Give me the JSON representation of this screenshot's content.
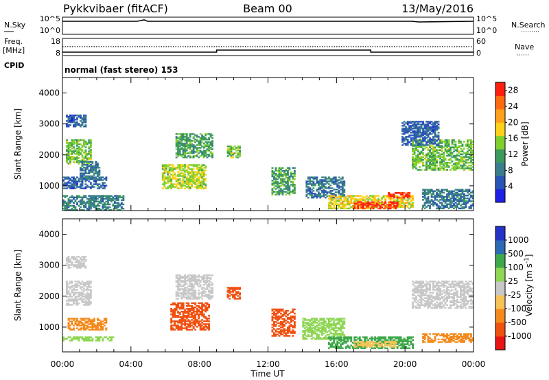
{
  "header": {
    "radar": "Pykkvibaer (fitACF)",
    "beam": "Beam 00",
    "date": "13/May/2016"
  },
  "top_panels": {
    "nsky_label": "N.Sky",
    "nsearch_label": "N.Search",
    "nsky_ticks": [
      "10^5",
      "10^0"
    ],
    "nsearch_ticks": [
      "10^5",
      "10^0"
    ],
    "freq_label": "Freq.",
    "freq_unit": "[MHz]",
    "freq_ticks": [
      "18",
      "8"
    ],
    "nave_label": "Nave",
    "nave_ticks": [
      "60",
      "0"
    ],
    "cpid_label": "CPID",
    "cpid_text": "normal (fast stereo) 153",
    "freq_steps": [
      {
        "t": 0.0,
        "v": 10.0
      },
      {
        "t": 9.0,
        "v": 11.2
      },
      {
        "t": 18.0,
        "v": 10.0
      },
      {
        "t": 24.0,
        "v": 10.0
      }
    ]
  },
  "colors": {
    "power": [
      "#1f1fe6",
      "#2a55b8",
      "#3a7d8c",
      "#3b9a5c",
      "#7fcf2e",
      "#ffd21a",
      "#ffa11a",
      "#ff6a10",
      "#ff1f10"
    ],
    "velocity": [
      "#e81414",
      "#f05010",
      "#f58a1c",
      "#f7c256",
      "#c8c8c8",
      "#8ed654",
      "#3ea84a",
      "#2c6ab4",
      "#2432c8"
    ]
  },
  "chart_data": [
    {
      "type": "heatmap",
      "name": "power",
      "x_ticks": [
        "00:00",
        "04:00",
        "08:00",
        "12:00",
        "16:00",
        "20:00",
        "00:00"
      ],
      "xlabel": "Time UT",
      "ylabel": "Slant Range [km]",
      "yticks": [
        1000,
        2000,
        3000,
        4000
      ],
      "ylim": [
        200,
        4500
      ],
      "xlim": [
        0,
        24
      ],
      "colorbar_label": "Power [dB]",
      "colorbar_ticks": [
        4,
        8,
        12,
        16,
        20,
        24,
        28
      ],
      "clim": [
        0,
        30
      ],
      "regions": [
        {
          "t0": 0.2,
          "t1": 1.7,
          "r0": 1700,
          "r1": 2500,
          "v": 14
        },
        {
          "t0": 0.2,
          "t1": 1.4,
          "r0": 2900,
          "r1": 3300,
          "v": 6
        },
        {
          "t0": 0.0,
          "t1": 3.6,
          "r0": 200,
          "r1": 700,
          "v": 9
        },
        {
          "t0": 0.0,
          "t1": 2.6,
          "r0": 900,
          "r1": 1300,
          "v": 6
        },
        {
          "t0": 1.0,
          "t1": 2.2,
          "r0": 1200,
          "r1": 1800,
          "v": 8
        },
        {
          "t0": 5.8,
          "t1": 8.4,
          "r0": 900,
          "r1": 1700,
          "v": 16
        },
        {
          "t0": 6.6,
          "t1": 8.8,
          "r0": 1900,
          "r1": 2700,
          "v": 12
        },
        {
          "t0": 9.6,
          "t1": 10.4,
          "r0": 1900,
          "r1": 2300,
          "v": 14
        },
        {
          "t0": 12.2,
          "t1": 13.6,
          "r0": 700,
          "r1": 1600,
          "v": 12
        },
        {
          "t0": 14.2,
          "t1": 16.5,
          "r0": 600,
          "r1": 1300,
          "v": 8
        },
        {
          "t0": 15.5,
          "t1": 20.5,
          "r0": 250,
          "r1": 700,
          "v": 18
        },
        {
          "t0": 17.0,
          "t1": 19.6,
          "r0": 250,
          "r1": 500,
          "v": 28
        },
        {
          "t0": 19.0,
          "t1": 20.3,
          "r0": 600,
          "r1": 800,
          "v": 28
        },
        {
          "t0": 20.4,
          "t1": 24.0,
          "r0": 1500,
          "r1": 2500,
          "v": 14
        },
        {
          "t0": 19.8,
          "t1": 22.0,
          "r0": 2300,
          "r1": 3100,
          "v": 6
        },
        {
          "t0": 21.0,
          "t1": 24.0,
          "r0": 250,
          "r1": 900,
          "v": 8
        }
      ]
    },
    {
      "type": "heatmap",
      "name": "velocity",
      "x_ticks": [
        "00:00",
        "04:00",
        "08:00",
        "12:00",
        "16:00",
        "20:00",
        "00:00"
      ],
      "xlabel": "Time UT",
      "ylabel": "Slant Range [km]",
      "yticks": [
        1000,
        2000,
        3000,
        4000
      ],
      "ylim": [
        200,
        4500
      ],
      "xlim": [
        0,
        24
      ],
      "colorbar_label": "Velocity [m s^-1]",
      "colorbar_ticks": [
        "-1000",
        "-500",
        "-100",
        "-25",
        "25",
        "100",
        "500",
        "1000"
      ],
      "regions": [
        {
          "t0": 0.2,
          "t1": 1.7,
          "r0": 1700,
          "r1": 2500,
          "v": 0
        },
        {
          "t0": 0.2,
          "t1": 1.4,
          "r0": 2900,
          "r1": 3300,
          "v": 0
        },
        {
          "t0": 0.0,
          "t1": 3.0,
          "r0": 550,
          "r1": 700,
          "v": 80
        },
        {
          "t0": 0.3,
          "t1": 2.6,
          "r0": 900,
          "r1": 1300,
          "v": -150
        },
        {
          "t0": 6.3,
          "t1": 8.6,
          "r0": 900,
          "r1": 1800,
          "v": -600
        },
        {
          "t0": 6.6,
          "t1": 8.8,
          "r0": 1900,
          "r1": 2700,
          "v": 0
        },
        {
          "t0": 9.6,
          "t1": 10.4,
          "r0": 1900,
          "r1": 2300,
          "v": -700
        },
        {
          "t0": 12.2,
          "t1": 13.6,
          "r0": 700,
          "r1": 1600,
          "v": -500
        },
        {
          "t0": 14.0,
          "t1": 16.5,
          "r0": 600,
          "r1": 1300,
          "v": 80
        },
        {
          "t0": 15.5,
          "t1": 20.5,
          "r0": 300,
          "r1": 700,
          "v": 200
        },
        {
          "t0": 17.0,
          "t1": 19.6,
          "r0": 350,
          "r1": 550,
          "v": -60
        },
        {
          "t0": 20.4,
          "t1": 24.0,
          "r0": 1600,
          "r1": 2500,
          "v": 0
        },
        {
          "t0": 21.0,
          "t1": 24.0,
          "r0": 500,
          "r1": 800,
          "v": -150
        }
      ]
    }
  ]
}
